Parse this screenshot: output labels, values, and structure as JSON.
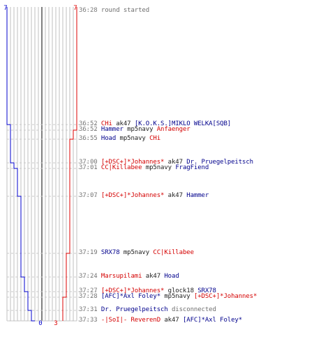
{
  "score": {
    "blue_start": "7",
    "red_start": "7",
    "blue_end": "0",
    "red_end": "3"
  },
  "colors": {
    "blue_team": "#0000cc",
    "red_team": "#dd0000",
    "grid": "#bfbfbf",
    "center_line": "#555555",
    "dash": "#c8c8c8",
    "time_text": "#7a7a7a"
  },
  "events": [
    {
      "time": "36:28",
      "parts": [
        {
          "text": "round started",
          "style": "plain"
        }
      ]
    },
    {
      "time": "36:52",
      "parts": [
        {
          "text": "CHi",
          "style": "red"
        },
        {
          "text": " ak47 ",
          "style": "w"
        },
        {
          "text": "[K.O.K.S.]MIKLO WELKA[SQB]",
          "style": "blue"
        }
      ]
    },
    {
      "time": "36:52",
      "parts": [
        {
          "text": "Hammer",
          "style": "blue"
        },
        {
          "text": " mp5navy ",
          "style": "w"
        },
        {
          "text": "Anfaenger",
          "style": "red"
        }
      ]
    },
    {
      "time": "36:55",
      "parts": [
        {
          "text": "Hoad",
          "style": "blue"
        },
        {
          "text": " mp5navy ",
          "style": "w"
        },
        {
          "text": "CHi",
          "style": "red"
        }
      ]
    },
    {
      "time": "37:00",
      "parts": [
        {
          "text": "[+DSC+]*Johannes*",
          "style": "red"
        },
        {
          "text": " ak47 ",
          "style": "w"
        },
        {
          "text": "Dr. Pruegelpeitsch",
          "style": "blue"
        }
      ]
    },
    {
      "time": "37:01",
      "parts": [
        {
          "text": "CC|Killabee",
          "style": "red"
        },
        {
          "text": " mp5navy ",
          "style": "w"
        },
        {
          "text": "FragFiend",
          "style": "blue"
        }
      ]
    },
    {
      "time": "37:07",
      "parts": [
        {
          "text": "[+DSC+]*Johannes*",
          "style": "red"
        },
        {
          "text": " ak47 ",
          "style": "w"
        },
        {
          "text": "Hammer",
          "style": "blue"
        }
      ]
    },
    {
      "time": "37:19",
      "parts": [
        {
          "text": "SRX78",
          "style": "blue"
        },
        {
          "text": " mp5navy ",
          "style": "w"
        },
        {
          "text": "CC|Killabee",
          "style": "red"
        }
      ]
    },
    {
      "time": "37:24",
      "parts": [
        {
          "text": "Marsupilami",
          "style": "red"
        },
        {
          "text": " ak47 ",
          "style": "w"
        },
        {
          "text": "Hoad",
          "style": "blue"
        }
      ]
    },
    {
      "time": "37:27",
      "parts": [
        {
          "text": "[+DSC+]*Johannes*",
          "style": "red"
        },
        {
          "text": " glock18 ",
          "style": "w"
        },
        {
          "text": "SRX78",
          "style": "blue"
        }
      ]
    },
    {
      "time": "37:28",
      "parts": [
        {
          "text": "[AFC]*Axl Foley*",
          "style": "blue"
        },
        {
          "text": " mp5navy ",
          "style": "w"
        },
        {
          "text": "[+DSC+]*Johannes*",
          "style": "red"
        }
      ]
    },
    {
      "time": "37:31",
      "parts": [
        {
          "text": "Dr. Pruegelpeitsch",
          "style": "blue"
        },
        {
          "text": " disconnected",
          "style": "plain"
        }
      ]
    },
    {
      "time": "37:33",
      "parts": [
        {
          "text": "-|SoI|- ReverenD",
          "style": "red"
        },
        {
          "text": " ak47 ",
          "style": "w"
        },
        {
          "text": "[AFC]*Axl Foley*",
          "style": "blue"
        }
      ]
    }
  ]
}
